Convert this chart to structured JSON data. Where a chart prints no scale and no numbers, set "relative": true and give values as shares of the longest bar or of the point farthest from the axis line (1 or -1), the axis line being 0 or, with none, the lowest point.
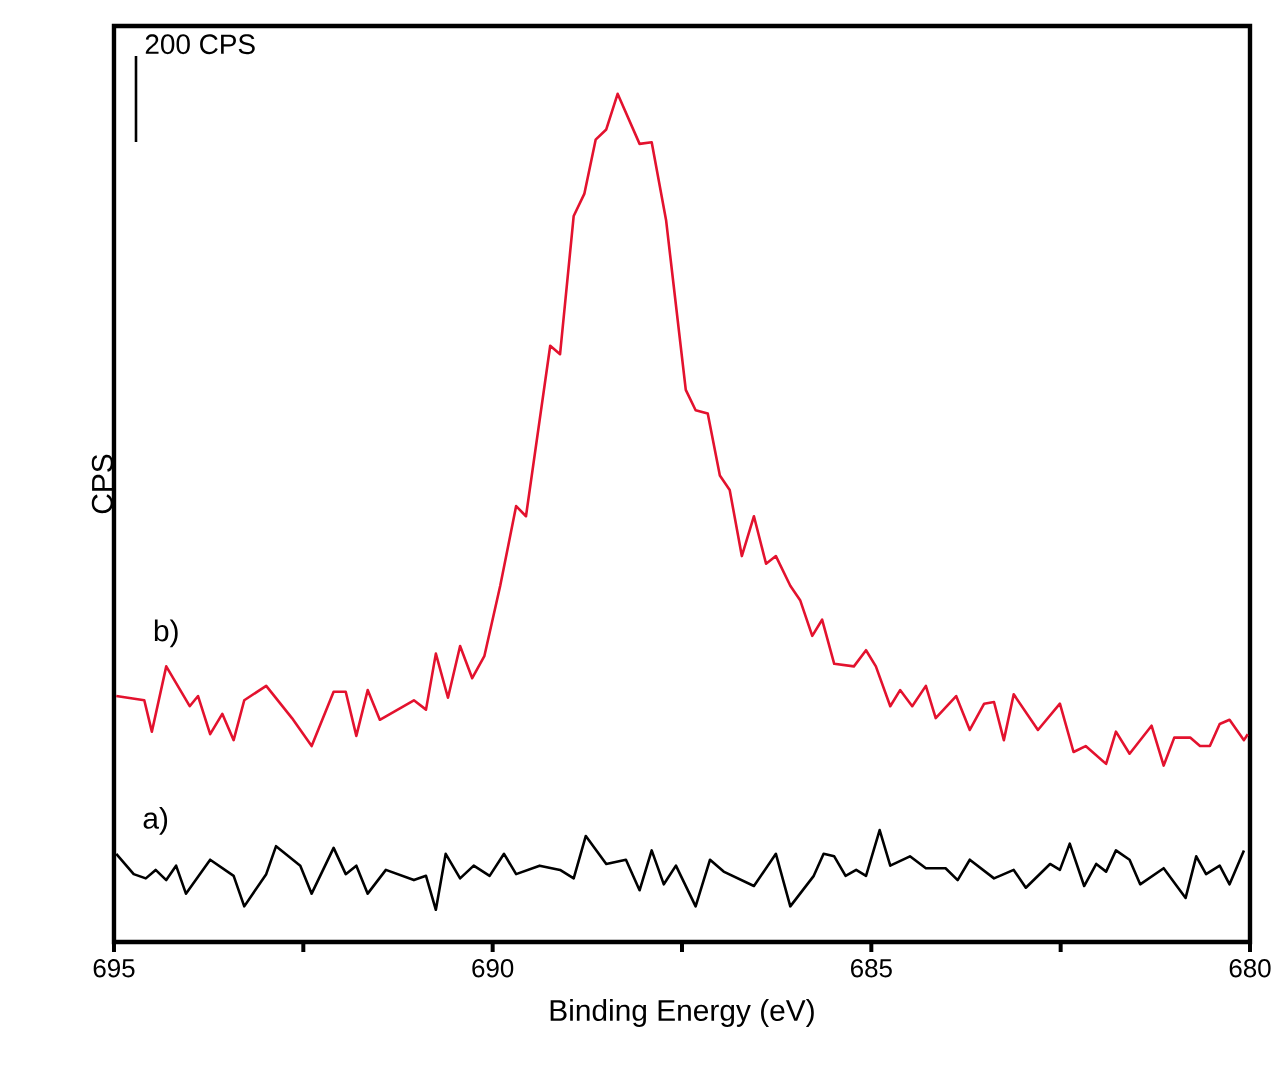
{
  "chart_data": {
    "type": "line",
    "xlabel": "Binding Energy (eV)",
    "ylabel": "CPS",
    "relative": true,
    "xlim": [
      695,
      680
    ],
    "xticks": [
      695,
      {
        "value": 692.5,
        "label": null
      },
      690,
      {
        "value": 687.5,
        "label": null
      },
      685,
      {
        "value": 682.5,
        "label": null
      },
      680
    ],
    "tick_labels": "x",
    "grid": false,
    "legend": false,
    "marker": "none",
    "line_style": "solid",
    "annotations": [
      "200 CPS"
    ],
    "series": [
      {
        "name": "b)",
        "color": "#e3122e",
        "x": [
          694.97,
          694.6,
          694.5,
          694.31,
          694.0,
          693.89,
          693.73,
          693.57,
          693.42,
          693.28,
          692.99,
          692.65,
          692.39,
          692.1,
          691.94,
          691.8,
          691.65,
          691.49,
          691.04,
          690.88,
          690.75,
          690.59,
          690.43,
          690.27,
          690.11,
          689.9,
          689.69,
          689.56,
          689.24,
          689.11,
          688.93,
          688.79,
          688.64,
          688.5,
          688.35,
          688.06,
          687.9,
          687.71,
          687.61,
          687.45,
          687.32,
          687.16,
          687.0,
          686.87,
          686.71,
          686.55,
          686.39,
          686.26,
          686.07,
          685.94,
          685.78,
          685.65,
          685.49,
          685.23,
          685.07,
          684.94,
          684.75,
          684.62,
          684.46,
          684.28,
          684.15,
          683.88,
          683.7,
          683.51,
          683.38,
          683.25,
          683.12,
          682.8,
          682.51,
          682.33,
          682.17,
          681.9,
          681.77,
          681.59,
          681.3,
          681.14,
          681.0,
          680.79,
          680.66,
          680.53,
          680.4,
          680.27,
          680.08,
          680.03
        ],
        "values": [
          0.29,
          0.285,
          0.248,
          0.325,
          0.278,
          0.29,
          0.245,
          0.269,
          0.238,
          0.285,
          0.302,
          0.264,
          0.231,
          0.295,
          0.295,
          0.243,
          0.297,
          0.262,
          0.285,
          0.274,
          0.34,
          0.288,
          0.349,
          0.311,
          0.337,
          0.42,
          0.514,
          0.502,
          0.703,
          0.693,
          0.856,
          0.882,
          0.946,
          0.958,
          1,
          0.941,
          0.943,
          0.851,
          0.774,
          0.651,
          0.627,
          0.623,
          0.55,
          0.533,
          0.455,
          0.502,
          0.446,
          0.455,
          0.42,
          0.403,
          0.361,
          0.38,
          0.328,
          0.325,
          0.344,
          0.325,
          0.278,
          0.297,
          0.278,
          0.302,
          0.264,
          0.29,
          0.25,
          0.281,
          0.283,
          0.238,
          0.292,
          0.25,
          0.281,
          0.224,
          0.231,
          0.21,
          0.248,
          0.222,
          0.255,
          0.208,
          0.241,
          0.241,
          0.231,
          0.231,
          0.257,
          0.262,
          0.238,
          0.245
        ]
      },
      {
        "name": "a)",
        "color": "#000000",
        "x": [
          694.97,
          694.74,
          694.58,
          694.45,
          694.31,
          694.18,
          694.05,
          693.73,
          693.42,
          693.28,
          692.99,
          692.86,
          692.54,
          692.39,
          692.1,
          691.94,
          691.8,
          691.65,
          691.41,
          691.04,
          690.88,
          690.75,
          690.62,
          690.43,
          690.25,
          690.04,
          689.85,
          689.69,
          689.38,
          689.11,
          688.93,
          688.77,
          688.5,
          688.24,
          688.06,
          687.9,
          687.74,
          687.58,
          687.32,
          687.13,
          686.95,
          686.55,
          686.26,
          686.07,
          685.76,
          685.63,
          685.49,
          685.34,
          685.2,
          685.07,
          684.89,
          684.75,
          684.49,
          684.28,
          684.02,
          683.86,
          683.7,
          683.38,
          683.12,
          682.96,
          682.64,
          682.51,
          682.38,
          682.19,
          682.03,
          681.9,
          681.77,
          681.59,
          681.45,
          681.14,
          680.85,
          680.71,
          680.58,
          680.4,
          680.27,
          680.08
        ],
        "values": [
          0.104,
          0.08,
          0.075,
          0.085,
          0.073,
          0.09,
          0.057,
          0.097,
          0.078,
          0.042,
          0.08,
          0.113,
          0.09,
          0.057,
          0.111,
          0.08,
          0.09,
          0.057,
          0.085,
          0.073,
          0.078,
          0.038,
          0.104,
          0.075,
          0.09,
          0.078,
          0.104,
          0.08,
          0.09,
          0.085,
          0.075,
          0.125,
          0.092,
          0.097,
          0.061,
          0.108,
          0.068,
          0.09,
          0.042,
          0.097,
          0.083,
          0.066,
          0.104,
          0.042,
          0.078,
          0.104,
          0.101,
          0.078,
          0.085,
          0.078,
          0.132,
          0.09,
          0.101,
          0.087,
          0.087,
          0.073,
          0.097,
          0.075,
          0.085,
          0.064,
          0.092,
          0.085,
          0.116,
          0.066,
          0.092,
          0.083,
          0.108,
          0.097,
          0.068,
          0.087,
          0.052,
          0.101,
          0.08,
          0.09,
          0.068,
          0.108
        ]
      }
    ]
  }
}
